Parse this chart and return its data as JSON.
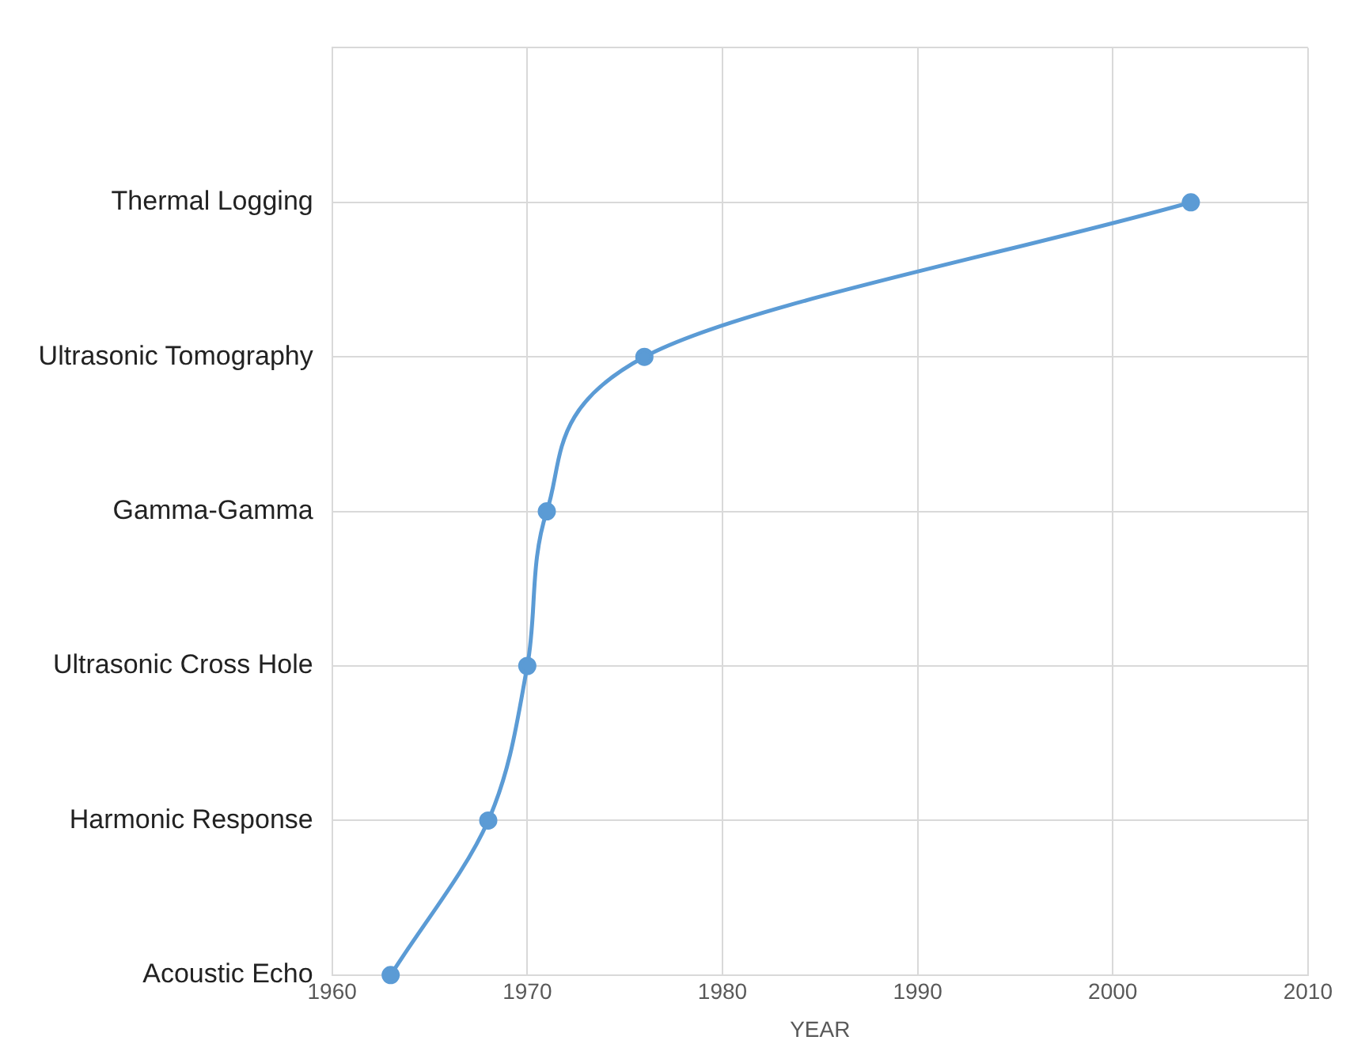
{
  "chart_data": {
    "type": "line",
    "orientation": "horizontal",
    "xlabel": "YEAR",
    "categories": [
      null,
      "Thermal Logging",
      "Ultrasonic Tomography",
      "Gamma-Gamma",
      "Ultrasonic Cross Hole",
      "Harmonic Response",
      "Acoustic Echo"
    ],
    "series": [
      {
        "color": "#5b9bd5",
        "values": [
          null,
          2004,
          1976,
          1971,
          1970,
          1968,
          1963
        ]
      }
    ],
    "xlim": [
      1960,
      2010
    ],
    "xticks": [
      1960,
      1970,
      1980,
      1990,
      2000,
      2010
    ],
    "grid": true,
    "marker": "circle",
    "line_style": "solid"
  }
}
